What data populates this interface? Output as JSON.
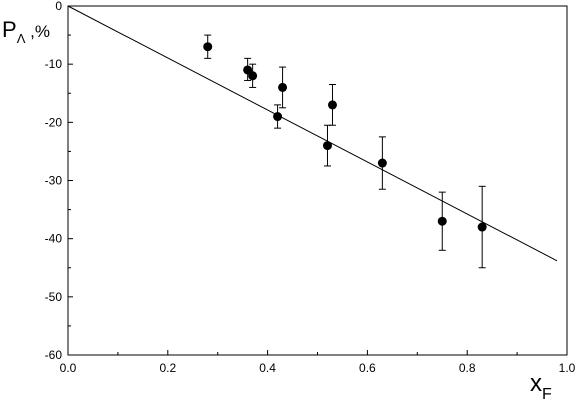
{
  "chart_data": {
    "type": "scatter",
    "title": "",
    "ylabel": {
      "main": "P",
      "sub": "Λ",
      "suffix": " ,%"
    },
    "xlabel": {
      "main": "x",
      "sub": "F"
    },
    "xlim": [
      0.0,
      1.0
    ],
    "ylim": [
      -60,
      0
    ],
    "xticks": [
      "0.0",
      "0.2",
      "0.4",
      "0.6",
      "0.8",
      "1.0"
    ],
    "yticks": [
      "0",
      "-10",
      "-20",
      "-30",
      "-40",
      "-50",
      "-60"
    ],
    "grid": false,
    "legend": "none",
    "series": [
      {
        "points": [
          {
            "x": 0.28,
            "y": -7.0,
            "err_low": 2.0,
            "err_high": 2.0
          },
          {
            "x": 0.36,
            "y": -11.0,
            "err_low": 1.8,
            "err_high": 2.0
          },
          {
            "x": 0.37,
            "y": -12.0,
            "err_low": 2.0,
            "err_high": 2.0
          },
          {
            "x": 0.42,
            "y": -19.0,
            "err_low": 2.0,
            "err_high": 2.0
          },
          {
            "x": 0.43,
            "y": -14.0,
            "err_low": 3.5,
            "err_high": 3.5
          },
          {
            "x": 0.52,
            "y": -24.0,
            "err_low": 3.5,
            "err_high": 3.5
          },
          {
            "x": 0.53,
            "y": -17.0,
            "err_low": 3.5,
            "err_high": 3.5
          },
          {
            "x": 0.63,
            "y": -27.0,
            "err_low": 4.5,
            "err_high": 4.5
          },
          {
            "x": 0.75,
            "y": -37.0,
            "err_low": 5.0,
            "err_high": 5.0
          },
          {
            "x": 0.83,
            "y": -38.0,
            "err_low": 7.0,
            "err_high": 7.0
          }
        ]
      }
    ],
    "fit_line": {
      "type": "linear",
      "from": [
        0.0,
        0.0
      ],
      "to": [
        0.98,
        -43.8
      ]
    },
    "colors": {
      "axis": "#000000",
      "marker": "#000000",
      "line": "#000000",
      "background": "#ffffff"
    }
  }
}
